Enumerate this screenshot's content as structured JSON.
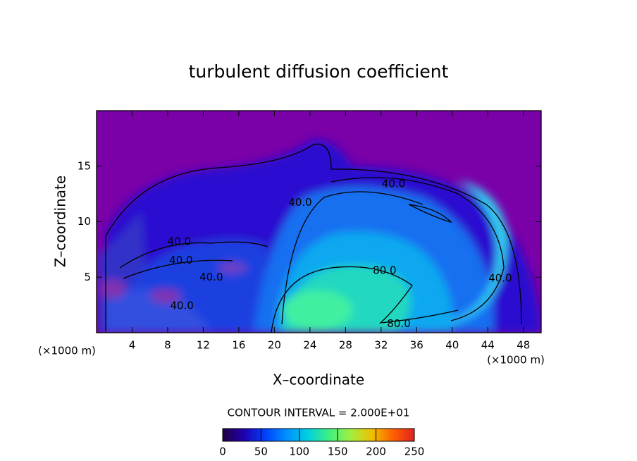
{
  "chart_data": {
    "type": "contour",
    "title": "turbulent diffusion coefficient",
    "xlabel": "X–coordinate",
    "ylabel": "Z–coordinate",
    "x_unit": "(×1000 m)",
    "y_unit": "(×1000 m)",
    "xlim": [
      0,
      50
    ],
    "xticks": [
      4,
      8,
      12,
      16,
      20,
      24,
      28,
      32,
      36,
      40,
      44,
      48
    ],
    "ylim": [
      0,
      20
    ],
    "yticks": [
      5,
      10,
      15
    ],
    "contour_interval": "CONTOUR INTERVAL = 2.000E+01",
    "contour_labels": [
      {
        "value": 40,
        "label": "40.0",
        "x": 33.4,
        "y": 13.4
      },
      {
        "value": 40,
        "label": "40.0",
        "x": 22.9,
        "y": 11.7
      },
      {
        "value": 40,
        "label": "40.0",
        "x": 9.3,
        "y": 8.2
      },
      {
        "value": 40,
        "label": "40.0",
        "x": 9.5,
        "y": 6.5
      },
      {
        "value": 40,
        "label": "40.0",
        "x": 12.9,
        "y": 5.0
      },
      {
        "value": 40,
        "label": "40.0",
        "x": 9.6,
        "y": 2.4
      },
      {
        "value": 80,
        "label": "80.0",
        "x": 32.4,
        "y": 5.6
      },
      {
        "value": 80,
        "label": "80.0",
        "x": 34.0,
        "y": 0.8
      },
      {
        "value": 40,
        "label": "40.0",
        "x": 45.4,
        "y": 4.9
      }
    ],
    "colorbar": {
      "lim": [
        0,
        250
      ],
      "ticks": [
        0,
        50,
        100,
        150,
        200,
        250
      ],
      "colormap": [
        "#200040",
        "#2000b0",
        "#0040ff",
        "#0090ff",
        "#00d0e0",
        "#40f080",
        "#a0f040",
        "#f0c000",
        "#ff6000",
        "#e02020"
      ]
    }
  }
}
